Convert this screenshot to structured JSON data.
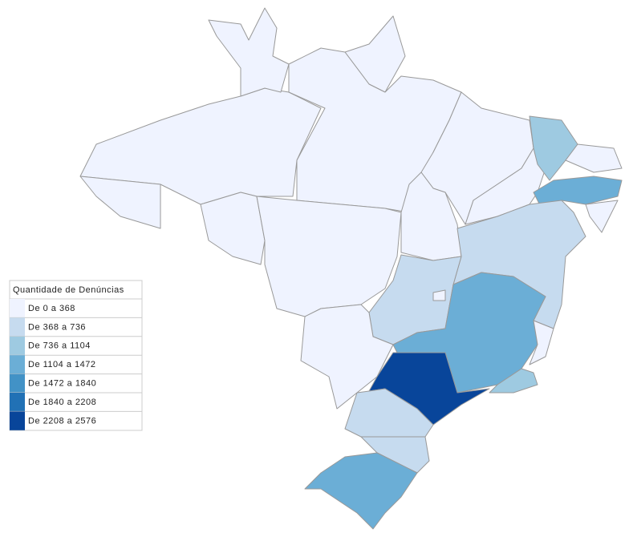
{
  "legend": {
    "title": "Quantidade de Denúncias",
    "items": [
      {
        "label": "De 0 a 368",
        "color": "#eff3ff"
      },
      {
        "label": "De 368 a 736",
        "color": "#c6dbef"
      },
      {
        "label": "De 736 a 1104",
        "color": "#9ecae1"
      },
      {
        "label": "De 1104 a 1472",
        "color": "#6baed6"
      },
      {
        "label": "De 1472 a 1840",
        "color": "#4292c6"
      },
      {
        "label": "De 1840 a 2208",
        "color": "#2171b5"
      },
      {
        "label": "De 2208 a 2576",
        "color": "#08459a"
      }
    ]
  }
}
